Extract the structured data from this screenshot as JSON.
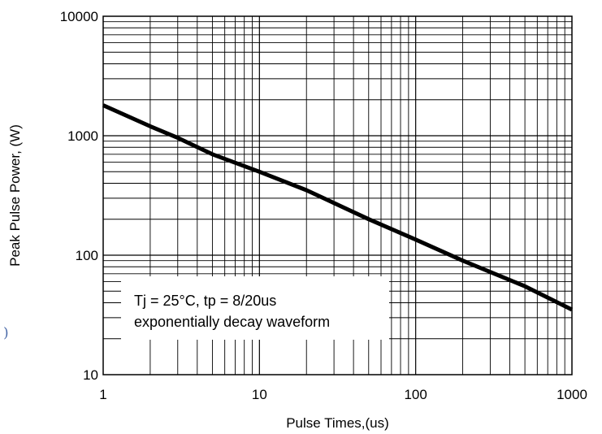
{
  "chart_data": {
    "type": "line",
    "xscale": "log",
    "yscale": "log",
    "xlim": [
      1,
      1000
    ],
    "ylim": [
      10,
      10000
    ],
    "xlabel": "Pulse Times,(us)",
    "ylabel": "Peak Pulse Power, (W)",
    "x_ticks": [
      "1",
      "10",
      "100",
      "1000"
    ],
    "y_ticks": [
      "10",
      "100",
      "1000",
      "10000"
    ],
    "grid": true,
    "series": [
      {
        "x": [
          1,
          2,
          3,
          5,
          10,
          20,
          50,
          100,
          200,
          500,
          1000
        ],
        "y": [
          1800,
          1200,
          960,
          700,
          500,
          350,
          200,
          135,
          90,
          55,
          35
        ],
        "color": "#000000"
      }
    ],
    "annotation": [
      "Tj = 25°C, tp = 8/20us",
      "exponentially decay waveform"
    ]
  },
  "stray_glyph": ")"
}
